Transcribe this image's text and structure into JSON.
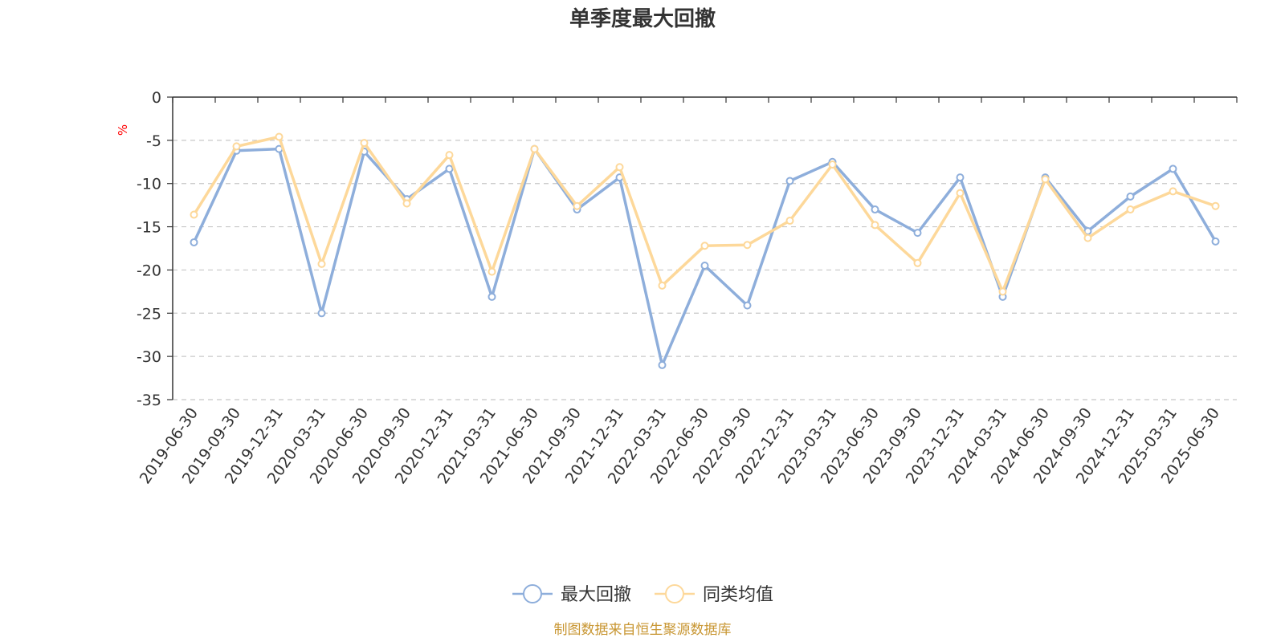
{
  "chart_data": {
    "type": "line",
    "title": "单季度最大回撤",
    "ylabel": "%",
    "xlabel": "",
    "ylim": [
      -35,
      0
    ],
    "yticks": [
      0,
      -5,
      -10,
      -15,
      -20,
      -25,
      -30,
      -35
    ],
    "grid": true,
    "legend_position": "bottom",
    "categories": [
      "2019-06-30",
      "2019-09-30",
      "2019-12-31",
      "2020-03-31",
      "2020-06-30",
      "2020-09-30",
      "2020-12-31",
      "2021-03-31",
      "2021-06-30",
      "2021-09-30",
      "2021-12-31",
      "2022-03-31",
      "2022-06-30",
      "2022-09-30",
      "2022-12-31",
      "2023-03-31",
      "2023-06-30",
      "2023-09-30",
      "2023-12-31",
      "2024-03-31",
      "2024-06-30",
      "2024-09-30",
      "2024-12-31",
      "2025-03-31",
      "2025-06-30"
    ],
    "series": [
      {
        "name": "最大回撤",
        "color": "#8eaedb",
        "values": [
          -16.8,
          -6.2,
          -6.0,
          -25.0,
          -6.3,
          -11.8,
          -8.3,
          -23.1,
          -6.0,
          -13.0,
          -9.3,
          -31.0,
          -19.5,
          -24.1,
          -9.7,
          -7.5,
          -13.0,
          -15.7,
          -9.3,
          -23.1,
          -9.3,
          -15.5,
          -11.5,
          -8.3,
          -16.7
        ]
      },
      {
        "name": "同类均值",
        "color": "#fdd89a",
        "values": [
          -13.6,
          -5.7,
          -4.6,
          -19.3,
          -5.3,
          -12.3,
          -6.7,
          -20.2,
          -6.0,
          -12.6,
          -8.1,
          -21.8,
          -17.2,
          -17.1,
          -14.3,
          -7.8,
          -14.8,
          -19.2,
          -11.1,
          -22.5,
          -9.5,
          -16.3,
          -13.0,
          -10.9,
          -12.6
        ]
      }
    ]
  },
  "footer": "制图数据来自恒生聚源数据库"
}
